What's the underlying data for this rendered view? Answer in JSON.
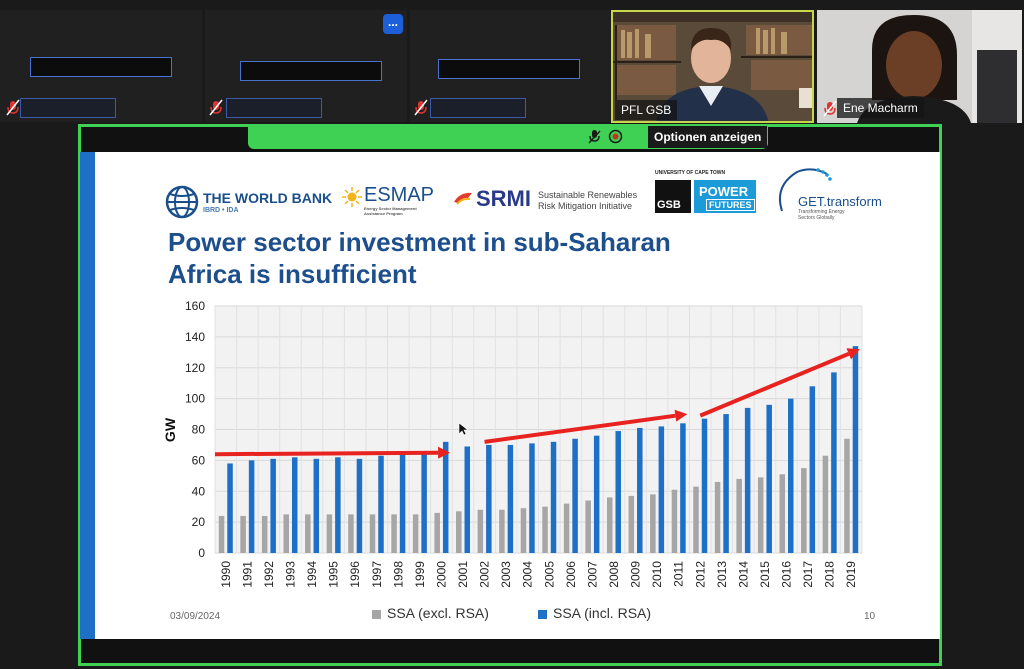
{
  "meeting": {
    "more_label": "...",
    "participants": [
      {
        "name": "PFL GSB"
      },
      {
        "name": "Ene Macharm"
      }
    ],
    "share_button_label": "Optionen anzeigen"
  },
  "slide": {
    "logos": {
      "world_bank": "THE WORLD BANK",
      "world_bank_sub": "IBRD • IDA",
      "esmap": "ESMAP",
      "esmap_sub": "Energy Sector Management Assistance Program",
      "srmi": "SRMI",
      "srmi_sub1": "Sustainable Renewables",
      "srmi_sub2": "Risk Mitigation Initiative",
      "uct": "UNIVERSITY OF CAPE TOWN",
      "gsb": "GSB",
      "power": "POWER",
      "futures": "FUTURES",
      "get": "GET.transform",
      "get_sub1": "Transforming Energy",
      "get_sub2": "Sectors Globally"
    },
    "title": "Power sector investment in sub-Saharan Africa is insufficient",
    "date": "03/09/2024",
    "page": "10"
  },
  "chart_data": {
    "type": "bar",
    "ylabel": "GW",
    "ylim": [
      0,
      160
    ],
    "yticks": [
      0,
      20,
      40,
      60,
      80,
      100,
      120,
      140,
      160
    ],
    "grid": true,
    "legend_position": "bottom",
    "categories": [
      "1990",
      "1991",
      "1992",
      "1993",
      "1994",
      "1995",
      "1996",
      "1997",
      "1998",
      "1999",
      "2000",
      "2001",
      "2002",
      "2003",
      "2004",
      "2005",
      "2006",
      "2007",
      "2008",
      "2009",
      "2010",
      "2011",
      "2012",
      "2013",
      "2014",
      "2015",
      "2016",
      "2017",
      "2018",
      "2019"
    ],
    "series": [
      {
        "name": "SSA (excl. RSA)",
        "color": "#a6a6a6",
        "values": [
          24,
          24,
          24,
          25,
          25,
          25,
          25,
          25,
          25,
          25,
          26,
          27,
          28,
          28,
          29,
          30,
          32,
          34,
          36,
          37,
          38,
          41,
          43,
          46,
          48,
          49,
          51,
          55,
          63,
          74
        ]
      },
      {
        "name": "SSA (incl. RSA)",
        "color": "#1e6fc6",
        "values": [
          58,
          60,
          61,
          62,
          61,
          62,
          61,
          63,
          64,
          64,
          72,
          69,
          70,
          70,
          71,
          72,
          74,
          76,
          79,
          81,
          82,
          84,
          87,
          90,
          94,
          96,
          100,
          108,
          117,
          134
        ]
      }
    ],
    "trend_arrows": [
      {
        "from": [
          "1990",
          64
        ],
        "to": [
          "2000",
          65
        ]
      },
      {
        "from": [
          "2002",
          72
        ],
        "to": [
          "2011",
          90
        ]
      },
      {
        "from": [
          "2012",
          89
        ],
        "to": [
          "2019",
          132
        ]
      }
    ]
  },
  "colors": {
    "share_border": "#3fd154",
    "accent_blue": "#1e6fc6",
    "title_blue": "#1d4f8c",
    "arrow_red": "#e8231f"
  }
}
